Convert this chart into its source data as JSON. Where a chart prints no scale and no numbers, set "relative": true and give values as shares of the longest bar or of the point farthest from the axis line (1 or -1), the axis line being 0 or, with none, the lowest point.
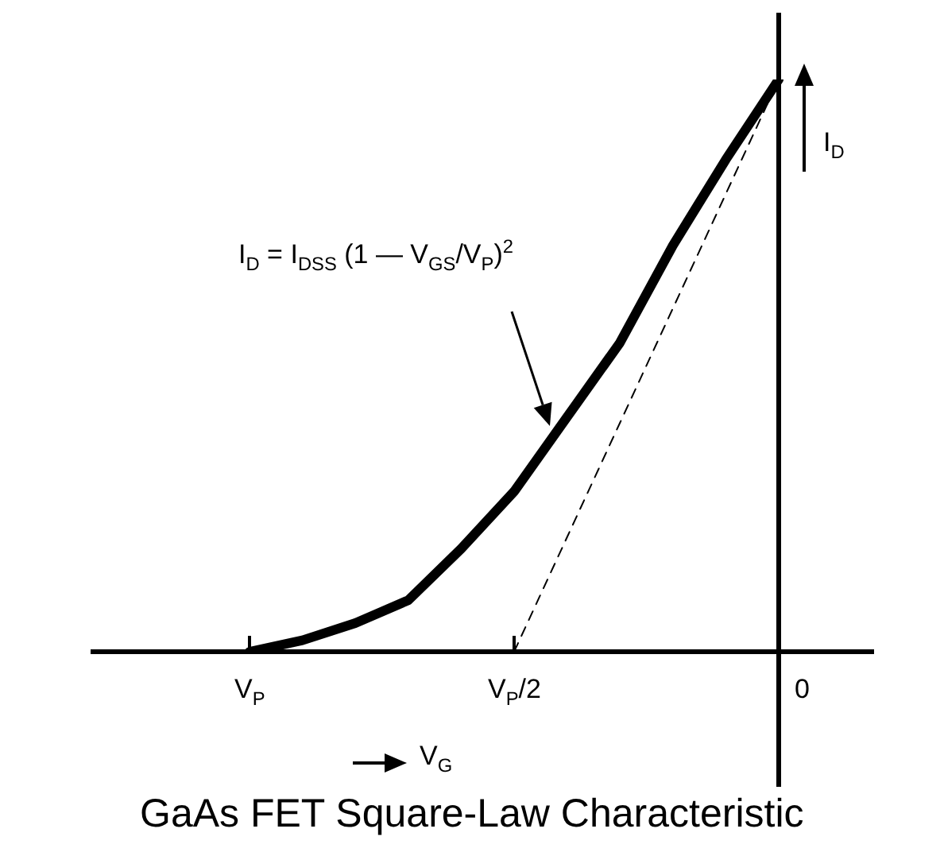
{
  "chart_data": {
    "type": "line",
    "title": "GaAs FET Square-Law Characteristic",
    "xlabel": "V$_{G}$",
    "ylabel": "I$_{D}$",
    "relative": true,
    "categories": [
      "V$_{P}$",
      null,
      null,
      null,
      null,
      "V$_{P}$/2",
      null,
      null,
      null,
      null,
      "0"
    ],
    "marker": "none",
    "annotations": [
      "I$_{D}$ = I$_{DSS}$ (1 — V$_{GS}$/V$_{P}$)$^{2}$"
    ],
    "series": [
      {
        "values": [
          0,
          0.02,
          0.05,
          0.09,
          0.18,
          0.28,
          0.41,
          0.54,
          0.71,
          0.86,
          1
        ],
        "color": "#000000"
      },
      {
        "type": "line",
        "values": [
          null,
          null,
          null,
          null,
          null,
          0,
          0.2,
          0.4,
          0.6,
          0.8,
          1
        ],
        "color": "#000000",
        "line_style": "dashed"
      }
    ]
  }
}
